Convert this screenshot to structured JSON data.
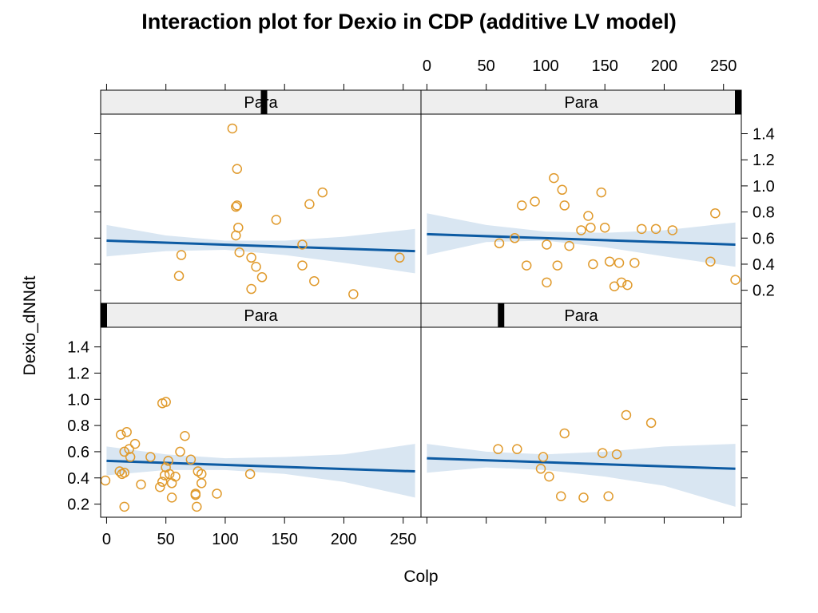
{
  "chart_data": {
    "type": "scatter",
    "title": "Interaction plot for Dexio in CDP (additive LV model)",
    "xlabel": "Colp",
    "ylabel": "Dexio_dNNdt",
    "xlim": [
      -5,
      265
    ],
    "ylim": [
      0.1,
      1.55
    ],
    "x_ticks": [
      0,
      50,
      100,
      150,
      200,
      250
    ],
    "y_ticks": [
      0.2,
      0.4,
      0.6,
      0.8,
      1.0,
      1.2,
      1.4
    ],
    "x_tick_labels": [
      "0",
      "50",
      "100",
      "150",
      "200",
      "250"
    ],
    "y_tick_labels": [
      "0.2",
      "0.4",
      "0.6",
      "0.8",
      "1.0",
      "1.2",
      "1.4"
    ],
    "colors": {
      "points": "#e09a2c",
      "fit_line": "#0d5ba3",
      "band": "#d9e6f2",
      "strip": "#eeeeee",
      "strip_marker": "#000000"
    },
    "grid": false,
    "panels": [
      {
        "strip": "Para",
        "strip_level": 0.51,
        "fit": {
          "x": [
            0,
            260
          ],
          "y": [
            0.58,
            0.5
          ]
        },
        "band": {
          "x": [
            0,
            50,
            100,
            150,
            200,
            260
          ],
          "upper": [
            0.7,
            0.62,
            0.58,
            0.58,
            0.61,
            0.67
          ],
          "lower": [
            0.46,
            0.5,
            0.51,
            0.47,
            0.41,
            0.33
          ]
        },
        "points": {
          "x": [
            106,
            110,
            110,
            109,
            111,
            109,
            143,
            171,
            182,
            112,
            122,
            126,
            122,
            131,
            165,
            175,
            165,
            63,
            61,
            208,
            247
          ],
          "y": [
            1.44,
            1.13,
            0.85,
            0.84,
            0.68,
            0.62,
            0.74,
            0.86,
            0.95,
            0.49,
            0.45,
            0.38,
            0.21,
            0.3,
            0.55,
            0.27,
            0.39,
            0.47,
            0.31,
            0.17,
            0.45
          ]
        }
      },
      {
        "strip": "Para",
        "strip_level": 1.0,
        "fit": {
          "x": [
            0,
            260
          ],
          "y": [
            0.63,
            0.55
          ]
        },
        "band": {
          "x": [
            0,
            50,
            100,
            150,
            200,
            260
          ],
          "upper": [
            0.79,
            0.7,
            0.65,
            0.64,
            0.66,
            0.72
          ],
          "lower": [
            0.47,
            0.57,
            0.58,
            0.53,
            0.46,
            0.38
          ]
        },
        "points": {
          "x": [
            107,
            114,
            116,
            147,
            136,
            138,
            130,
            150,
            80,
            91,
            74,
            61,
            101,
            84,
            110,
            101,
            120,
            140,
            154,
            162,
            164,
            158,
            169,
            175,
            181,
            193,
            207,
            239,
            243,
            260
          ],
          "y": [
            1.06,
            0.97,
            0.85,
            0.95,
            0.77,
            0.68,
            0.66,
            0.68,
            0.85,
            0.88,
            0.6,
            0.56,
            0.55,
            0.39,
            0.39,
            0.26,
            0.54,
            0.4,
            0.42,
            0.41,
            0.26,
            0.23,
            0.24,
            0.41,
            0.67,
            0.67,
            0.66,
            0.42,
            0.79,
            0.28
          ]
        }
      },
      {
        "strip": "Para",
        "strip_level": 0.0,
        "fit": {
          "x": [
            0,
            260
          ],
          "y": [
            0.53,
            0.45
          ]
        },
        "band": {
          "x": [
            0,
            50,
            100,
            150,
            200,
            260
          ],
          "upper": [
            0.64,
            0.58,
            0.55,
            0.56,
            0.58,
            0.66
          ],
          "lower": [
            0.42,
            0.46,
            0.46,
            0.43,
            0.37,
            0.25
          ]
        },
        "points": {
          "x": [
            -1,
            11,
            12,
            13,
            15,
            15,
            17,
            20,
            24,
            29,
            37,
            45,
            47,
            47,
            49,
            50,
            50,
            52,
            53,
            55,
            55,
            58,
            62,
            66,
            71,
            75,
            76,
            75,
            77,
            80,
            80,
            93,
            121,
            15,
            19
          ],
          "y": [
            0.38,
            0.45,
            0.73,
            0.43,
            0.44,
            0.6,
            0.75,
            0.56,
            0.66,
            0.35,
            0.56,
            0.33,
            0.37,
            0.97,
            0.42,
            0.48,
            0.98,
            0.53,
            0.43,
            0.25,
            0.36,
            0.41,
            0.6,
            0.72,
            0.54,
            0.28,
            0.18,
            0.27,
            0.45,
            0.43,
            0.36,
            0.28,
            0.43,
            0.18,
            0.62
          ]
        }
      },
      {
        "strip": "Para",
        "strip_level": 0.25,
        "fit": {
          "x": [
            0,
            260
          ],
          "y": [
            0.55,
            0.47
          ]
        },
        "band": {
          "x": [
            0,
            50,
            100,
            150,
            200,
            260
          ],
          "upper": [
            0.66,
            0.6,
            0.58,
            0.6,
            0.64,
            0.66
          ],
          "lower": [
            0.44,
            0.48,
            0.46,
            0.41,
            0.34,
            0.18
          ]
        },
        "points": {
          "x": [
            60,
            76,
            96,
            98,
            103,
            113,
            116,
            132,
            148,
            153,
            160,
            168,
            189
          ],
          "y": [
            0.62,
            0.62,
            0.47,
            0.56,
            0.41,
            0.26,
            0.74,
            0.25,
            0.59,
            0.26,
            0.58,
            0.88,
            0.82
          ]
        }
      }
    ]
  }
}
